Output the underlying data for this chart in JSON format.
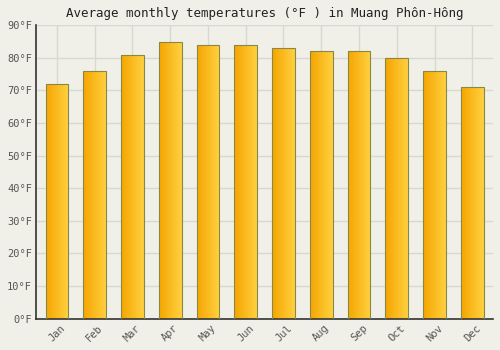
{
  "title": "Average monthly temperatures (°F ) in Muang Phôn-Hông",
  "months": [
    "Jan",
    "Feb",
    "Mar",
    "Apr",
    "May",
    "Jun",
    "Jul",
    "Aug",
    "Sep",
    "Oct",
    "Nov",
    "Dec"
  ],
  "values": [
    72,
    76,
    81,
    85,
    84,
    84,
    83,
    82,
    82,
    80,
    76,
    71
  ],
  "bar_color_left": "#F5A500",
  "bar_color_right": "#FFD040",
  "bar_edge_color": "#888844",
  "ylim": [
    0,
    90
  ],
  "yticks": [
    0,
    10,
    20,
    30,
    40,
    50,
    60,
    70,
    80,
    90
  ],
  "ytick_labels": [
    "0°F",
    "10°F",
    "20°F",
    "30°F",
    "40°F",
    "50°F",
    "60°F",
    "70°F",
    "80°F",
    "90°F"
  ],
  "background_color": "#f0f0e8",
  "plot_bg_color": "#f0f0e8",
  "grid_color": "#d8d8d0",
  "title_fontsize": 9,
  "tick_fontsize": 7.5,
  "font_family": "monospace",
  "bar_width": 0.6,
  "left_spine_color": "#333333",
  "bottom_spine_color": "#333333"
}
